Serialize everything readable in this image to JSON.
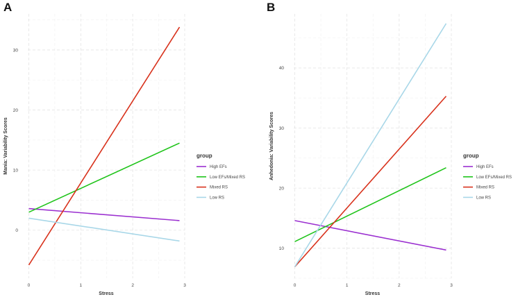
{
  "chart_data": [
    {
      "type": "line",
      "panel_label": "A",
      "title": "",
      "xlabel": "Stress",
      "ylabel": "Mania: Variability Scores",
      "xlim": [
        -0.02,
        3
      ],
      "ylim": [
        -8,
        36
      ],
      "x_ticks": [
        0,
        1,
        2,
        3
      ],
      "x_tick_labels": [
        "0",
        "1",
        "2",
        "3"
      ],
      "y_ticks": [
        0,
        10,
        20,
        30
      ],
      "y_tick_labels": [
        "0",
        "10",
        "20",
        "30"
      ],
      "grid": true,
      "legend": {
        "title": "group",
        "position": "right",
        "entries": [
          "High EFs",
          "Low EFs/Mixed RS",
          "Mixed RS",
          "Low RS"
        ]
      },
      "series": [
        {
          "name": "High EFs",
          "color": "#9b30d0",
          "x": [
            0,
            2.9
          ],
          "y": [
            3.6,
            1.6
          ]
        },
        {
          "name": "Low EFs/Mixed RS",
          "color": "#1fc41a",
          "x": [
            0,
            2.9
          ],
          "y": [
            3.0,
            14.5
          ]
        },
        {
          "name": "Mixed RS",
          "color": "#d8311b",
          "x": [
            0,
            2.9
          ],
          "y": [
            -5.8,
            33.8
          ]
        },
        {
          "name": "Low RS",
          "color": "#a8d7e8",
          "x": [
            0,
            2.9
          ],
          "y": [
            2.0,
            -1.8
          ]
        }
      ]
    },
    {
      "type": "line",
      "panel_label": "B",
      "title": "",
      "xlabel": "Stress",
      "ylabel": "Anhedonia: Variability Scores",
      "xlim": [
        -0.02,
        3
      ],
      "ylim": [
        5,
        49
      ],
      "x_ticks": [
        0,
        1,
        2,
        3
      ],
      "x_tick_labels": [
        "0",
        "1",
        "2",
        "3"
      ],
      "y_ticks": [
        10,
        20,
        30,
        40
      ],
      "y_tick_labels": [
        "10",
        "20",
        "30",
        "40"
      ],
      "grid": true,
      "legend": {
        "title": "group",
        "position": "right",
        "entries": [
          "High EFs",
          "Low EFs/Mixed RS",
          "Mixed RS",
          "Low RS"
        ]
      },
      "series": [
        {
          "name": "High EFs",
          "color": "#9b30d0",
          "x": [
            0,
            2.9
          ],
          "y": [
            14.6,
            9.7
          ]
        },
        {
          "name": "Low EFs/Mixed RS",
          "color": "#1fc41a",
          "x": [
            0,
            2.9
          ],
          "y": [
            11.1,
            23.4
          ]
        },
        {
          "name": "Mixed RS",
          "color": "#d8311b",
          "x": [
            0,
            2.9
          ],
          "y": [
            6.9,
            35.3
          ]
        },
        {
          "name": "Low RS",
          "color": "#a8d7e8",
          "x": [
            0,
            2.9
          ],
          "y": [
            6.9,
            47.4
          ]
        }
      ]
    }
  ]
}
